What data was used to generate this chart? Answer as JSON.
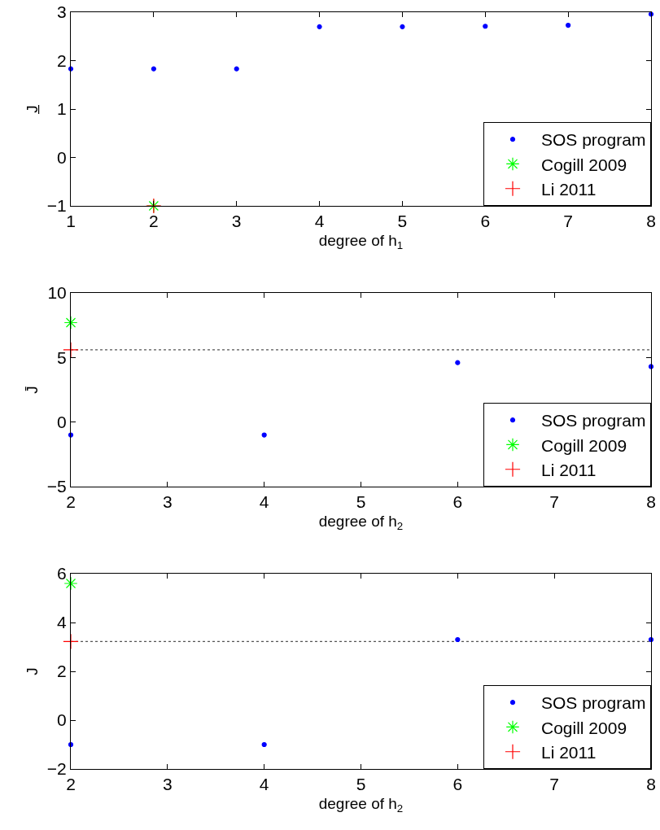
{
  "chart_data": [
    {
      "type": "scatter",
      "xlabel": "degree of h$_{1}$",
      "ylabel": "J̲",
      "xlim": [
        1,
        8
      ],
      "xticks": [
        1,
        2,
        3,
        4,
        5,
        6,
        7,
        8
      ],
      "ylim": [
        -1,
        3
      ],
      "yticks": [
        -1,
        0,
        1,
        2,
        3
      ],
      "grid": false,
      "legend": "bottom right",
      "series": [
        {
          "name": "SOS program",
          "color": "#0000ff",
          "marker": "circle",
          "x": [
            1,
            2,
            3,
            4,
            5,
            6,
            7,
            8
          ],
          "values": [
            1.83,
            1.83,
            1.83,
            2.7,
            2.7,
            2.71,
            2.73,
            2.96
          ]
        },
        {
          "name": "Cogill 2009",
          "color": "#00ff00",
          "marker": "cross",
          "x": [
            2
          ],
          "values": [
            -1
          ]
        },
        {
          "name": "Li 2011",
          "color": "#ff0000",
          "marker": "cross",
          "x": [
            2
          ],
          "values": [
            -1
          ]
        }
      ]
    },
    {
      "type": "scatter",
      "xlabel": "degree of h$_{2}$",
      "ylabel": "J̄",
      "xlim": [
        2,
        8
      ],
      "xticks": [
        2,
        3,
        4,
        5,
        6,
        7,
        8
      ],
      "ylim": [
        -5,
        10
      ],
      "yticks": [
        -5,
        0,
        5,
        10
      ],
      "grid": false,
      "legend": "bottom right",
      "ref_lines": [
        {
          "axis": "y",
          "value": 5.6,
          "color": "#555555",
          "line_style": "dotted"
        }
      ],
      "series": [
        {
          "name": "SOS program",
          "color": "#0000ff",
          "marker": "circle",
          "x": [
            2,
            4,
            6,
            8
          ],
          "values": [
            -1,
            -1,
            4.6,
            4.3
          ]
        },
        {
          "name": "Cogill 2009",
          "color": "#00ff00",
          "marker": "cross",
          "x": [
            2
          ],
          "values": [
            7.7
          ]
        },
        {
          "name": "Li 2011",
          "color": "#ff0000",
          "marker": "cross",
          "x": [
            2
          ],
          "values": [
            5.6
          ]
        }
      ]
    },
    {
      "type": "scatter",
      "xlabel": "degree of h$_{2}$",
      "ylabel": "J",
      "xlim": [
        2,
        8
      ],
      "xticks": [
        2,
        3,
        4,
        5,
        6,
        7,
        8
      ],
      "ylim": [
        -2,
        6
      ],
      "yticks": [
        -2,
        0,
        2,
        4,
        6
      ],
      "grid": false,
      "legend": "bottom right",
      "ref_lines": [
        {
          "axis": "y",
          "value": 3.22,
          "color": "#555555",
          "line_style": "dotted"
        }
      ],
      "series": [
        {
          "name": "SOS program",
          "color": "#0000ff",
          "marker": "circle",
          "x": [
            2,
            4,
            6,
            8
          ],
          "values": [
            -1,
            -1,
            3.3,
            3.3
          ]
        },
        {
          "name": "Cogill 2009",
          "color": "#00ff00",
          "marker": "cross",
          "x": [
            2
          ],
          "values": [
            5.6
          ]
        },
        {
          "name": "Li 2011",
          "color": "#ff0000",
          "marker": "cross",
          "x": [
            2
          ],
          "values": [
            3.22
          ]
        }
      ]
    }
  ]
}
